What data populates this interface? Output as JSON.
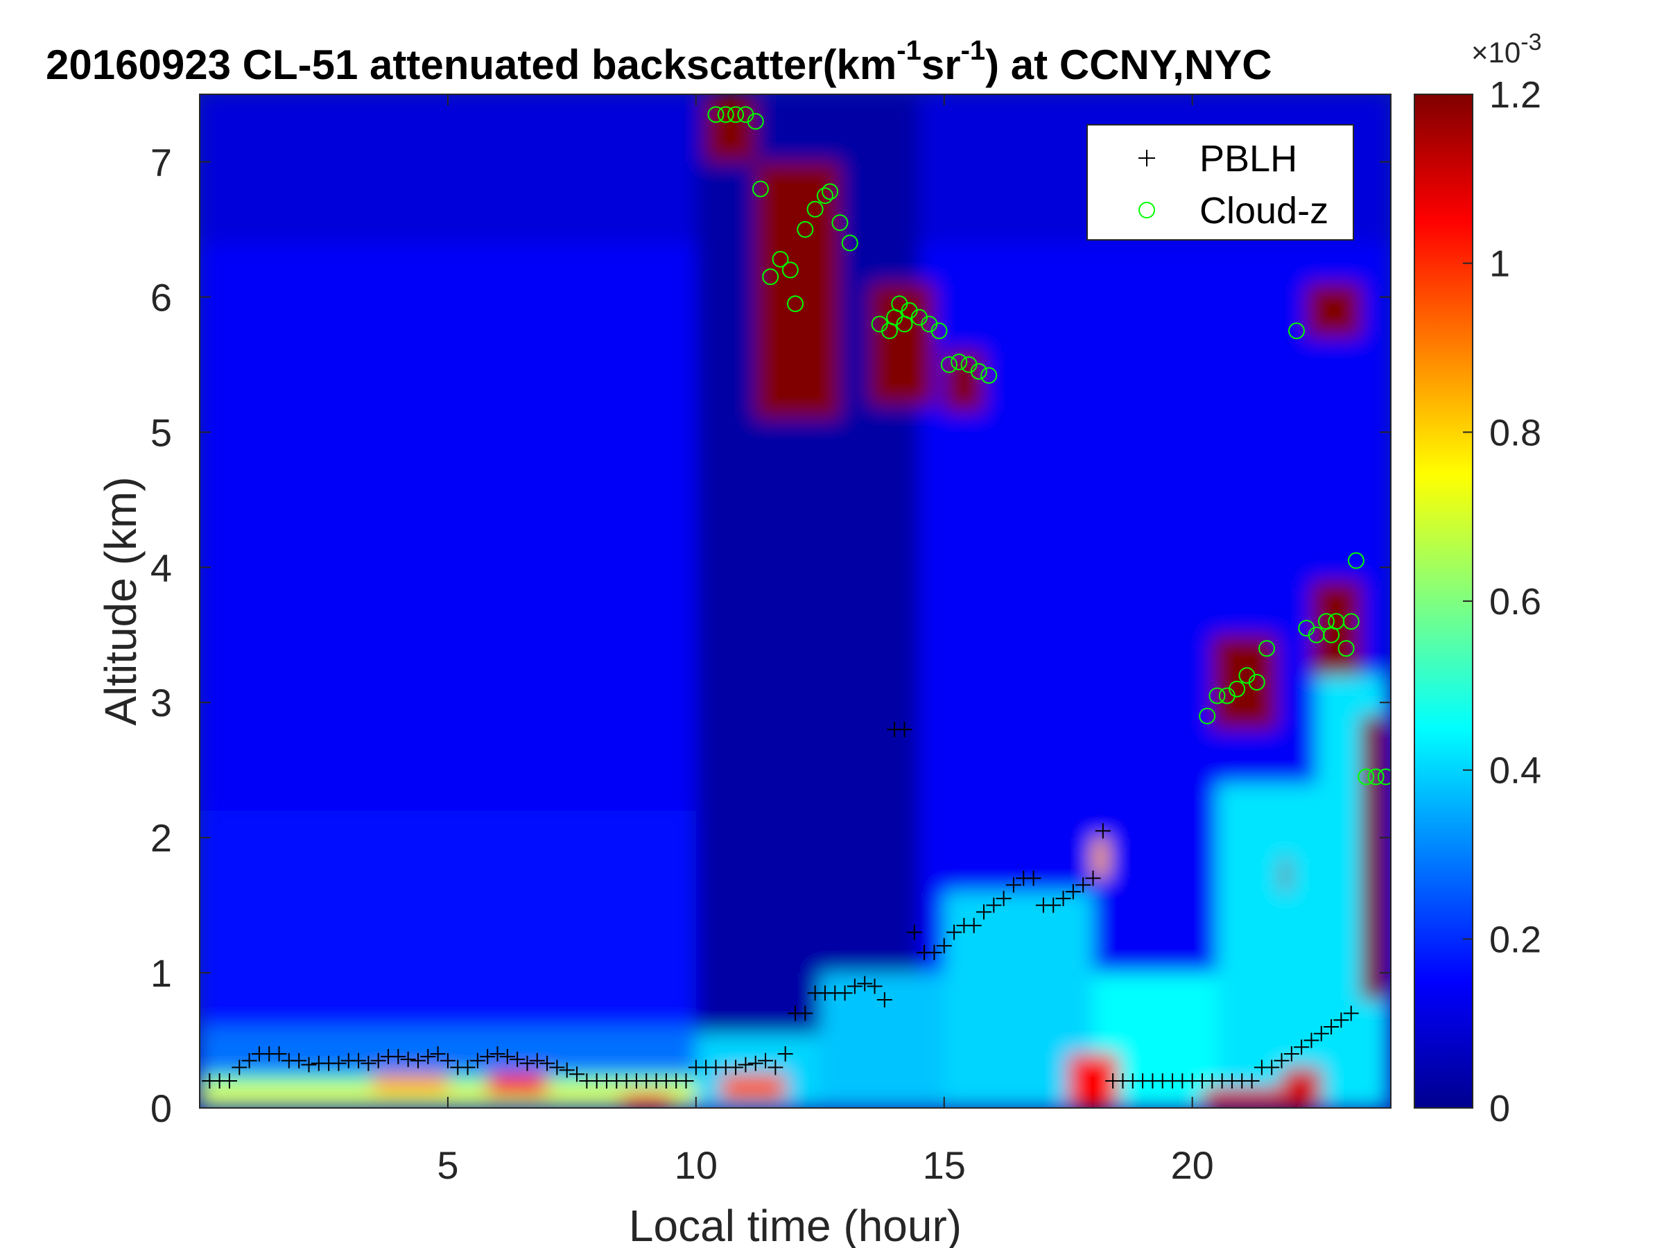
{
  "chart_data": {
    "type": "heatmap",
    "title_parts": [
      "20160923  CL-51 attenuated backscatter(km",
      "-1",
      "sr",
      "-1",
      ") at CCNY,NYC"
    ],
    "xlabel": "Local time (hour)",
    "ylabel": "Altitude (km)",
    "xlim": [
      0,
      24
    ],
    "ylim": [
      0,
      7.5
    ],
    "xticks": [
      5,
      10,
      15,
      20
    ],
    "xtick_labels": [
      "5",
      "10",
      "15",
      "20"
    ],
    "yticks": [
      0,
      1,
      2,
      3,
      4,
      5,
      6,
      7
    ],
    "ytick_labels": [
      "0",
      "1",
      "2",
      "3",
      "4",
      "5",
      "6",
      "7"
    ],
    "colorbar": {
      "range": [
        0,
        1.2
      ],
      "ticks": [
        0,
        0.2,
        0.4,
        0.6,
        0.8,
        1.0,
        1.2
      ],
      "tick_labels": [
        "0",
        "0.2",
        "0.4",
        "0.6",
        "0.8",
        "1",
        "1.2"
      ],
      "exponent_label": "×10",
      "exponent_power": "-3",
      "colormap": "jet"
    },
    "legend": {
      "placement": "top-right",
      "entries": [
        {
          "label": "PBLH",
          "marker": "+",
          "color": "#000000"
        },
        {
          "label": "Cloud-z",
          "marker": "o",
          "color": "#00ff00"
        }
      ]
    },
    "field_blocks": [
      {
        "x": [
          0,
          24
        ],
        "y": [
          0,
          7.5
        ],
        "value": 0.1
      },
      {
        "x": [
          0,
          24
        ],
        "y": [
          0,
          6.4
        ],
        "value": 0.14
      },
      {
        "x": [
          0,
          10
        ],
        "y": [
          0,
          2.2
        ],
        "value": 0.17
      },
      {
        "x": [
          0,
          10
        ],
        "y": [
          0,
          0.6
        ],
        "value": 0.28
      },
      {
        "x": [
          0,
          10
        ],
        "y": [
          0,
          0.25
        ],
        "value": 0.55
      },
      {
        "x": [
          10,
          14.5
        ],
        "y": [
          0,
          7.5
        ],
        "value": 0.03
      },
      {
        "x": [
          10,
          12.5
        ],
        "y": [
          0,
          0.55
        ],
        "value": 0.4
      },
      {
        "x": [
          12.5,
          15
        ],
        "y": [
          0,
          1.0
        ],
        "value": 0.38
      },
      {
        "x": [
          15,
          18
        ],
        "y": [
          0,
          1.6
        ],
        "value": 0.4
      },
      {
        "x": [
          18,
          20.5
        ],
        "y": [
          0,
          1.0
        ],
        "value": 0.45
      },
      {
        "x": [
          20.5,
          23.9
        ],
        "y": [
          0,
          2.4
        ],
        "value": 0.42
      },
      {
        "x": [
          22.5,
          23.9
        ],
        "y": [
          0,
          3.2
        ],
        "value": 0.42
      },
      {
        "x": [
          0,
          10
        ],
        "y": [
          0.05,
          0.15
        ],
        "value": 0.75
      },
      {
        "x": [
          3.5,
          5
        ],
        "y": [
          0.1,
          0.25
        ],
        "value": 0.85
      },
      {
        "x": [
          5.8,
          7
        ],
        "y": [
          0.08,
          0.25
        ],
        "value": 1.0
      },
      {
        "x": [
          8.5,
          9.5
        ],
        "y": [
          0,
          0.1
        ],
        "value": 1.05
      },
      {
        "x": [
          10.5,
          11.8
        ],
        "y": [
          0.05,
          0.25
        ],
        "value": 0.95
      },
      {
        "x": [
          17.5,
          18.5
        ],
        "y": [
          0,
          0.4
        ],
        "value": 1.05
      },
      {
        "x": [
          18,
          18.3
        ],
        "y": [
          1.7,
          2.0
        ],
        "value": 0.85
      },
      {
        "x": [
          20.2,
          21.8
        ],
        "y": [
          0,
          0.15
        ],
        "value": 1.1
      },
      {
        "x": [
          21.8,
          22.6
        ],
        "y": [
          0,
          0.3
        ],
        "value": 1.1
      },
      {
        "x": [
          10.2,
          11.2
        ],
        "y": [
          7.0,
          7.5
        ],
        "value": 1.2
      },
      {
        "x": [
          11.2,
          12.9
        ],
        "y": [
          5.1,
          7.0
        ],
        "value": 1.2
      },
      {
        "x": [
          13.5,
          14.8
        ],
        "y": [
          5.2,
          6.1
        ],
        "value": 1.2
      },
      {
        "x": [
          15.0,
          15.8
        ],
        "y": [
          5.15,
          5.6
        ],
        "value": 1.2
      },
      {
        "x": [
          20.4,
          21.7
        ],
        "y": [
          2.8,
          3.5
        ],
        "value": 1.2
      },
      {
        "x": [
          22.4,
          23.4
        ],
        "y": [
          3.2,
          3.9
        ],
        "value": 1.2
      },
      {
        "x": [
          23.4,
          23.9
        ],
        "y": [
          0.8,
          2.9
        ],
        "value": 1.2
      },
      {
        "x": [
          22.3,
          23.4
        ],
        "y": [
          5.7,
          6.1
        ],
        "value": 1.2
      },
      {
        "x": [
          21.8,
          21.95
        ],
        "y": [
          1.6,
          1.85
        ],
        "value": 1.2
      }
    ],
    "series": [
      {
        "name": "PBLH",
        "marker": "+",
        "color": "#000000",
        "x": [
          0.2,
          0.4,
          0.6,
          0.8,
          1.0,
          1.2,
          1.4,
          1.6,
          1.8,
          2.0,
          2.2,
          2.4,
          2.6,
          2.8,
          3.0,
          3.2,
          3.4,
          3.6,
          3.8,
          4.0,
          4.2,
          4.4,
          4.6,
          4.8,
          5.0,
          5.2,
          5.4,
          5.6,
          5.8,
          6.0,
          6.2,
          6.4,
          6.6,
          6.8,
          7.0,
          7.2,
          7.4,
          7.6,
          7.8,
          8.0,
          8.2,
          8.4,
          8.6,
          8.8,
          9.0,
          9.2,
          9.4,
          9.6,
          9.8,
          10.0,
          10.2,
          10.4,
          10.6,
          10.8,
          11.0,
          11.2,
          11.4,
          11.6,
          11.8,
          12.0,
          12.2,
          12.4,
          12.6,
          12.8,
          13.0,
          13.2,
          13.4,
          13.6,
          13.8,
          14.0,
          14.2,
          14.4,
          14.6,
          14.8,
          15.0,
          15.2,
          15.4,
          15.6,
          15.8,
          16.0,
          16.2,
          16.4,
          16.6,
          16.8,
          17.0,
          17.2,
          17.4,
          17.6,
          17.8,
          18.0,
          18.2,
          18.4,
          18.6,
          18.8,
          19.0,
          19.2,
          19.4,
          19.6,
          19.8,
          20.0,
          20.2,
          20.4,
          20.6,
          20.8,
          21.0,
          21.2,
          21.4,
          21.6,
          21.8,
          22.0,
          22.2,
          22.4,
          22.6,
          22.8,
          23.0,
          23.2
        ],
        "y": [
          0.2,
          0.2,
          0.2,
          0.3,
          0.35,
          0.4,
          0.4,
          0.4,
          0.35,
          0.35,
          0.32,
          0.33,
          0.33,
          0.33,
          0.35,
          0.35,
          0.33,
          0.35,
          0.38,
          0.38,
          0.36,
          0.35,
          0.38,
          0.4,
          0.35,
          0.3,
          0.3,
          0.35,
          0.38,
          0.4,
          0.38,
          0.36,
          0.33,
          0.35,
          0.33,
          0.3,
          0.28,
          0.25,
          0.2,
          0.2,
          0.2,
          0.2,
          0.2,
          0.2,
          0.2,
          0.2,
          0.2,
          0.2,
          0.2,
          0.3,
          0.3,
          0.3,
          0.3,
          0.3,
          0.32,
          0.33,
          0.35,
          0.3,
          0.4,
          0.7,
          0.7,
          0.85,
          0.85,
          0.85,
          0.85,
          0.9,
          0.92,
          0.9,
          0.8,
          2.8,
          2.8,
          1.3,
          1.15,
          1.15,
          1.2,
          1.3,
          1.35,
          1.35,
          1.45,
          1.5,
          1.55,
          1.65,
          1.7,
          1.7,
          1.5,
          1.5,
          1.55,
          1.6,
          1.65,
          1.7,
          2.05,
          0.2,
          0.2,
          0.2,
          0.2,
          0.2,
          0.2,
          0.2,
          0.2,
          0.2,
          0.2,
          0.2,
          0.2,
          0.2,
          0.2,
          0.2,
          0.3,
          0.3,
          0.35,
          0.4,
          0.45,
          0.5,
          0.55,
          0.6,
          0.65,
          0.7
        ]
      },
      {
        "name": "Cloud-z",
        "marker": "o",
        "color": "#00ff00",
        "x": [
          10.4,
          10.6,
          10.8,
          11.0,
          11.2,
          11.3,
          11.5,
          11.7,
          11.9,
          12.0,
          12.2,
          12.4,
          12.6,
          12.7,
          12.9,
          13.1,
          13.9,
          14.1,
          14.3,
          14.5,
          14.7,
          14.9,
          15.1,
          15.3,
          15.5,
          15.7,
          15.9,
          13.7,
          14.0,
          14.2,
          20.3,
          20.5,
          20.7,
          20.9,
          21.1,
          21.3,
          21.5,
          22.3,
          22.5,
          22.7,
          22.9,
          23.1,
          23.3,
          23.5,
          23.7,
          23.9,
          22.1,
          22.8,
          23.2
        ],
        "y": [
          7.35,
          7.35,
          7.35,
          7.35,
          7.3,
          6.8,
          6.15,
          6.28,
          6.2,
          5.95,
          6.5,
          6.65,
          6.75,
          6.78,
          6.55,
          6.4,
          5.75,
          5.95,
          5.9,
          5.85,
          5.8,
          5.75,
          5.5,
          5.52,
          5.5,
          5.45,
          5.42,
          5.8,
          5.85,
          5.8,
          2.9,
          3.05,
          3.05,
          3.1,
          3.2,
          3.15,
          3.4,
          3.55,
          3.5,
          3.6,
          3.6,
          3.4,
          4.05,
          2.45,
          2.45,
          2.45,
          5.75,
          3.5,
          3.6
        ]
      }
    ]
  }
}
